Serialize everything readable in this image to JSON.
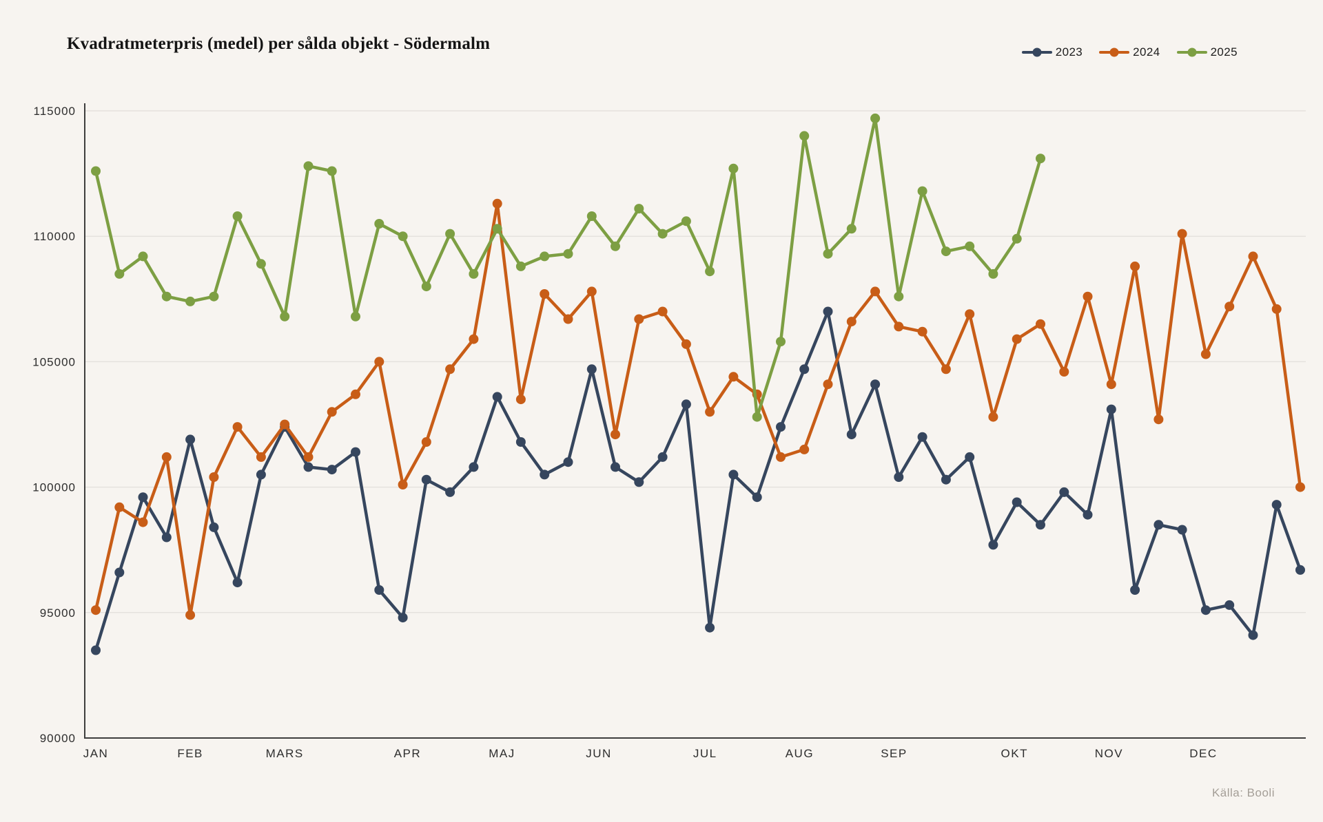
{
  "header": {
    "title": "Kvadratmeterpris (medel) per sålda objekt - Södermalm"
  },
  "source": {
    "label": "Källa: Booli"
  },
  "colors": {
    "background": "#f7f4f0",
    "grid": "#e5e2de",
    "axis": "#3d3d3d",
    "tick_text": "#2d2d2d",
    "title_text": "#141414",
    "source_text": "#a49e97",
    "series_2023": "#36465e",
    "series_2024": "#c85d17",
    "series_2025": "#7d9f43"
  },
  "chart_data": {
    "type": "line",
    "title": "Kvadratmeterpris (medel) per sålda objekt - Södermalm",
    "xlabel": "",
    "ylabel": "",
    "x_unit": "week-of-year",
    "weeks_total": 52,
    "ylim": [
      90000,
      115000
    ],
    "grid": true,
    "legend_position": "top-right",
    "marker": "circle",
    "y_ticks": [
      115000,
      110000,
      105000,
      100000,
      95000,
      90000
    ],
    "x_ticks": [
      {
        "label": "JAN",
        "week": 1
      },
      {
        "label": "FEB",
        "week": 5
      },
      {
        "label": "MARS",
        "week": 9
      },
      {
        "label": "APR",
        "week": 14.2
      },
      {
        "label": "MAJ",
        "week": 18.2
      },
      {
        "label": "JUN",
        "week": 22.3
      },
      {
        "label": "JUL",
        "week": 26.8
      },
      {
        "label": "AUG",
        "week": 30.8
      },
      {
        "label": "SEP",
        "week": 34.8
      },
      {
        "label": "OKT",
        "week": 39.9
      },
      {
        "label": "NOV",
        "week": 43.9
      },
      {
        "label": "DEC",
        "week": 47.9
      }
    ],
    "series": [
      {
        "name": "2023",
        "color": "#36465e",
        "start_week": 1,
        "values": [
          93500,
          96600,
          99600,
          98000,
          101900,
          98400,
          96200,
          100500,
          102400,
          100800,
          100700,
          101400,
          95900,
          94800,
          100300,
          99800,
          100800,
          103600,
          101800,
          100500,
          101000,
          104700,
          100800,
          100200,
          101200,
          103300,
          94400,
          100500,
          99600,
          102400,
          104700,
          107000,
          102100,
          104100,
          100400,
          102000,
          100300,
          101200,
          97700,
          99400,
          98500,
          99800,
          98900,
          103100,
          95900,
          98500,
          98300,
          95100,
          95300,
          94100,
          99300,
          96700
        ]
      },
      {
        "name": "2024",
        "color": "#c85d17",
        "start_week": 1,
        "values": [
          95100,
          99200,
          98600,
          101200,
          94900,
          100400,
          102400,
          101200,
          102500,
          101200,
          103000,
          103700,
          105000,
          100100,
          101800,
          104700,
          105900,
          111300,
          103500,
          107700,
          106700,
          107800,
          102100,
          106700,
          107000,
          105700,
          103000,
          104400,
          103700,
          101200,
          101500,
          104100,
          106600,
          107800,
          106400,
          106200,
          104700,
          106900,
          102800,
          105900,
          106500,
          104600,
          107600,
          104100,
          108800,
          102700,
          110100,
          105300,
          107200,
          109200,
          107100,
          100000
        ]
      },
      {
        "name": "2025",
        "color": "#7d9f43",
        "start_week": 1,
        "values": [
          112600,
          108500,
          109200,
          107600,
          107400,
          107600,
          110800,
          108900,
          106800,
          112800,
          112600,
          106800,
          110500,
          110000,
          108000,
          110100,
          108500,
          110300,
          108800,
          109200,
          109300,
          110800,
          109600,
          111100,
          110100,
          110600,
          108600,
          112700,
          102800,
          105800,
          114000,
          109300,
          110300,
          114700,
          107600,
          111800,
          109400,
          109600,
          108500,
          109900,
          113100
        ]
      }
    ]
  }
}
